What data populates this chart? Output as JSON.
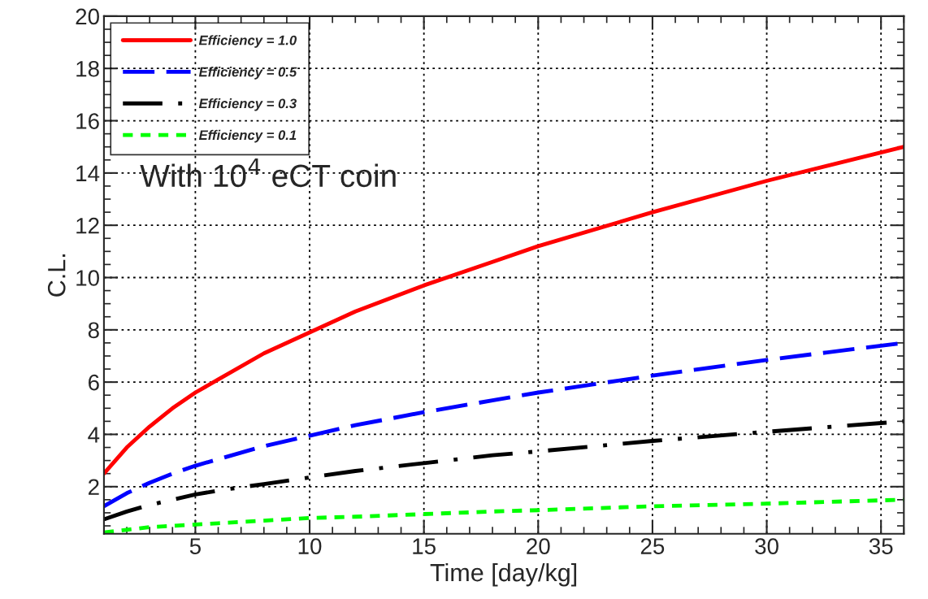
{
  "chart_data": {
    "type": "line",
    "xlabel": "Time [day/kg]",
    "ylabel": "C.L.",
    "x": [
      1,
      2,
      3,
      4,
      5,
      6,
      8,
      10,
      12,
      15,
      18,
      20,
      25,
      30,
      36
    ],
    "series": [
      {
        "name": "Efficiency = 1.0",
        "color": "#ff0000",
        "line_style": "solid",
        "values": [
          2.5,
          3.5,
          4.3,
          5.0,
          5.6,
          6.1,
          7.1,
          7.9,
          8.7,
          9.7,
          10.6,
          11.2,
          12.5,
          13.7,
          15.0
        ]
      },
      {
        "name": "Efficiency = 0.5",
        "color": "#0000ff",
        "line_style": "dashed",
        "values": [
          1.25,
          1.75,
          2.15,
          2.5,
          2.8,
          3.05,
          3.55,
          3.95,
          4.35,
          4.85,
          5.3,
          5.6,
          6.25,
          6.85,
          7.5
        ]
      },
      {
        "name": "Efficiency = 0.3",
        "color": "#000000",
        "line_style": "dashdot",
        "values": [
          0.75,
          1.05,
          1.3,
          1.5,
          1.7,
          1.85,
          2.1,
          2.35,
          2.6,
          2.9,
          3.2,
          3.35,
          3.75,
          4.1,
          4.5
        ]
      },
      {
        "name": "Efficiency = 0.1",
        "color": "#00ff00",
        "line_style": "dotted",
        "values": [
          0.25,
          0.35,
          0.45,
          0.5,
          0.55,
          0.6,
          0.7,
          0.8,
          0.85,
          0.95,
          1.05,
          1.1,
          1.25,
          1.35,
          1.5
        ]
      }
    ],
    "annotations": [
      "With 10$^{4}$ eCT coin"
    ],
    "xlim": [
      1,
      36
    ],
    "ylim": [
      0.2,
      20
    ],
    "xticks": [
      5,
      10,
      15,
      20,
      25,
      30,
      35
    ],
    "yticks": [
      2,
      4,
      6,
      8,
      10,
      12,
      14,
      16,
      18,
      20
    ],
    "grid": true,
    "legend": "top left"
  }
}
